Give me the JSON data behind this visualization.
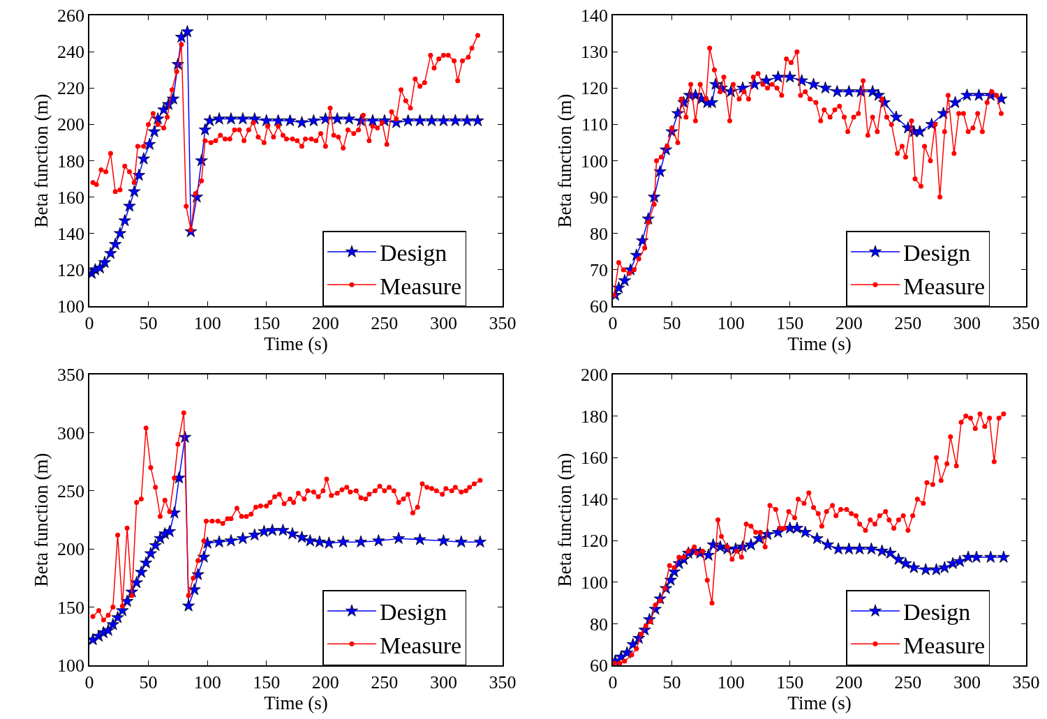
{
  "chart_data": [
    {
      "type": "line",
      "xlabel": "Time (s)",
      "ylabel": "Beta function (m)",
      "xlim": [
        0,
        350
      ],
      "xticks": [
        0,
        50,
        100,
        150,
        200,
        250,
        300,
        350
      ],
      "ylim": [
        100,
        260
      ],
      "yticks": [
        100,
        120,
        140,
        160,
        180,
        200,
        220,
        240,
        260
      ],
      "grid": false,
      "legend": "bottom right",
      "series": [
        {
          "name": "Design",
          "color": "#0000ff",
          "marker": "star",
          "x": [
            2,
            5,
            9,
            13,
            18,
            22,
            26,
            30,
            34,
            38,
            42,
            46,
            51,
            55,
            58,
            63,
            67,
            71,
            75,
            78,
            83,
            86,
            91,
            95,
            98,
            102,
            110,
            120,
            130,
            140,
            150,
            160,
            170,
            180,
            190,
            200,
            210,
            220,
            230,
            240,
            250,
            260,
            270,
            280,
            290,
            300,
            310,
            320,
            329
          ],
          "values": [
            118,
            120,
            121,
            124,
            129,
            134,
            140,
            147,
            155,
            163,
            172,
            181,
            189,
            196,
            203,
            208,
            211,
            214,
            233,
            248,
            251,
            141,
            160,
            180,
            197,
            202,
            203,
            203,
            203,
            203,
            202,
            202,
            202,
            201,
            202,
            203,
            203,
            203,
            202,
            202,
            202,
            201,
            202,
            202,
            202,
            202,
            202,
            202,
            202
          ]
        },
        {
          "name": "Measure",
          "color": "#ff0000",
          "marker": "circle",
          "x": [
            3,
            6,
            10,
            14,
            18,
            22,
            26,
            30,
            34,
            38,
            41,
            46,
            50,
            54,
            58,
            63,
            66,
            70,
            74,
            78,
            82,
            86,
            90,
            95,
            98,
            103,
            107,
            111,
            115,
            119,
            123,
            127,
            131,
            135,
            139,
            143,
            148,
            151,
            156,
            160,
            164,
            167,
            172,
            176,
            180,
            183,
            188,
            192,
            196,
            200,
            204,
            207,
            211,
            215,
            219,
            224,
            228,
            232,
            237,
            240,
            244,
            248,
            252,
            256,
            260,
            264,
            268,
            272,
            276,
            280,
            284,
            289,
            292,
            296,
            300,
            304,
            309,
            312,
            316,
            321,
            324,
            329
          ],
          "values": [
            168,
            167,
            175,
            174,
            184,
            163,
            164,
            177,
            174,
            168,
            188,
            188,
            200,
            206,
            200,
            198,
            204,
            219,
            229,
            244,
            155,
            142,
            162,
            169,
            191,
            190,
            191,
            194,
            192,
            192,
            197,
            197,
            191,
            197,
            201,
            193,
            190,
            199,
            193,
            199,
            194,
            192,
            192,
            191,
            188,
            192,
            192,
            191,
            195,
            188,
            209,
            194,
            193,
            187,
            197,
            195,
            197,
            205,
            191,
            199,
            198,
            201,
            189,
            207,
            203,
            219,
            213,
            209,
            225,
            221,
            223,
            238,
            231,
            236,
            238,
            238,
            235,
            224,
            235,
            237,
            242,
            249
          ]
        }
      ]
    },
    {
      "type": "line",
      "xlabel": "Time (s)",
      "ylabel": "Beta function (m)",
      "xlim": [
        0,
        350
      ],
      "xticks": [
        0,
        50,
        100,
        150,
        200,
        250,
        300,
        350
      ],
      "ylim": [
        60,
        140
      ],
      "yticks": [
        60,
        70,
        80,
        90,
        100,
        110,
        120,
        130,
        140
      ],
      "grid": false,
      "legend": "bottom right",
      "series": [
        {
          "name": "Design",
          "color": "#0000ff",
          "marker": "star",
          "x": [
            2,
            5,
            10,
            15,
            20,
            25,
            30,
            35,
            40,
            45,
            50,
            55,
            60,
            65,
            70,
            75,
            80,
            84,
            87,
            92,
            100,
            110,
            120,
            130,
            140,
            150,
            160,
            170,
            180,
            190,
            200,
            210,
            220,
            225,
            230,
            240,
            250,
            255,
            260,
            270,
            280,
            290,
            300,
            310,
            320,
            329
          ],
          "values": [
            63,
            65,
            67,
            70,
            74,
            78,
            84,
            90,
            97,
            103,
            108,
            113,
            116,
            118,
            118,
            117,
            116,
            116,
            121,
            120,
            119,
            120,
            121,
            122,
            123,
            123,
            122,
            121,
            120,
            119,
            119,
            119,
            119,
            118,
            116,
            112,
            109,
            108,
            108,
            110,
            113,
            116,
            118,
            118,
            118,
            117
          ]
        },
        {
          "name": "Measure",
          "color": "#ff0000",
          "marker": "circle",
          "x": [
            1,
            5,
            9,
            14,
            18,
            22,
            27,
            30,
            35,
            37,
            41,
            46,
            50,
            55,
            58,
            62,
            66,
            70,
            74,
            79,
            82,
            86,
            91,
            94,
            99,
            102,
            107,
            111,
            115,
            119,
            123,
            127,
            131,
            135,
            139,
            143,
            147,
            151,
            156,
            159,
            163,
            167,
            172,
            176,
            179,
            184,
            188,
            192,
            196,
            199,
            204,
            208,
            212,
            216,
            220,
            224,
            228,
            232,
            236,
            241,
            245,
            248,
            253,
            256,
            261,
            264,
            269,
            273,
            277,
            281,
            284,
            289,
            293,
            297,
            301,
            305,
            309,
            313,
            317,
            321,
            325,
            329
          ],
          "values": [
            63,
            72,
            70,
            69,
            70,
            73,
            76,
            83,
            88,
            100,
            101,
            104,
            109,
            105,
            117,
            112,
            121,
            111,
            121,
            117,
            131,
            125,
            119,
            123,
            111,
            121,
            117,
            119,
            117,
            123,
            124,
            121,
            120,
            121,
            120,
            118,
            128,
            127,
            130,
            118,
            119,
            117,
            116,
            111,
            114,
            112,
            114,
            115,
            112,
            108,
            112,
            113,
            122,
            107,
            112,
            108,
            117,
            112,
            110,
            102,
            104,
            101,
            111,
            95,
            93,
            104,
            100,
            110,
            90,
            108,
            118,
            102,
            113,
            113,
            108,
            109,
            113,
            108,
            116,
            119,
            118,
            113
          ]
        }
      ]
    },
    {
      "type": "line",
      "xlabel": "Time (s)",
      "ylabel": "Beta function (m)",
      "xlim": [
        0,
        350
      ],
      "xticks": [
        0,
        50,
        100,
        150,
        200,
        250,
        300,
        350
      ],
      "ylim": [
        100,
        350
      ],
      "yticks": [
        100,
        150,
        200,
        250,
        300,
        350
      ],
      "grid": false,
      "legend": "bottom right",
      "series": [
        {
          "name": "Design",
          "color": "#0000ff",
          "marker": "star",
          "x": [
            3,
            8,
            12,
            16,
            20,
            24,
            28,
            32,
            36,
            40,
            44,
            48,
            52,
            56,
            60,
            64,
            68,
            72,
            76,
            81,
            84,
            89,
            92,
            97,
            100,
            110,
            120,
            130,
            140,
            148,
            155,
            164,
            172,
            180,
            187,
            195,
            203,
            215,
            230,
            245,
            262,
            280,
            300,
            315,
            331
          ],
          "values": [
            122,
            125,
            128,
            130,
            135,
            141,
            147,
            155,
            163,
            171,
            180,
            188,
            196,
            203,
            209,
            213,
            215,
            231,
            261,
            296,
            151,
            165,
            178,
            193,
            205,
            206,
            207,
            209,
            212,
            215,
            216,
            216,
            213,
            210,
            207,
            206,
            205,
            206,
            206,
            207,
            209,
            208,
            207,
            206,
            206
          ]
        },
        {
          "name": "Measure",
          "color": "#ff0000",
          "marker": "circle",
          "x": [
            3,
            8,
            12,
            16,
            20,
            24,
            28,
            32,
            36,
            40,
            44,
            48,
            52,
            56,
            60,
            64,
            68,
            72,
            75,
            80,
            84,
            88,
            92,
            97,
            99,
            104,
            109,
            113,
            117,
            120,
            125,
            129,
            133,
            137,
            141,
            145,
            150,
            153,
            157,
            161,
            165,
            170,
            173,
            177,
            182,
            185,
            190,
            194,
            198,
            201,
            205,
            210,
            214,
            218,
            221,
            226,
            230,
            234,
            237,
            242,
            246,
            250,
            254,
            258,
            262,
            266,
            270,
            274,
            278,
            282,
            286,
            290,
            294,
            299,
            302,
            307,
            310,
            315,
            319,
            322,
            326,
            331
          ],
          "values": [
            142,
            147,
            139,
            143,
            150,
            212,
            151,
            218,
            160,
            240,
            243,
            304,
            270,
            253,
            228,
            242,
            232,
            261,
            290,
            317,
            160,
            175,
            190,
            207,
            224,
            224,
            224,
            222,
            226,
            226,
            235,
            228,
            228,
            230,
            236,
            237,
            237,
            240,
            245,
            247,
            239,
            243,
            240,
            248,
            243,
            250,
            249,
            245,
            250,
            260,
            246,
            248,
            251,
            253,
            249,
            250,
            244,
            243,
            247,
            250,
            254,
            250,
            253,
            250,
            240,
            243,
            247,
            231,
            236,
            256,
            253,
            252,
            250,
            247,
            252,
            250,
            253,
            249,
            250,
            253,
            256,
            259
          ]
        }
      ]
    },
    {
      "type": "line",
      "xlabel": "Time (s)",
      "ylabel": "Beta function (m)",
      "xlim": [
        0,
        350
      ],
      "xticks": [
        0,
        50,
        100,
        150,
        200,
        250,
        300,
        350
      ],
      "ylim": [
        60,
        200
      ],
      "yticks": [
        60,
        80,
        100,
        120,
        140,
        160,
        180,
        200
      ],
      "grid": false,
      "legend": "bottom right",
      "series": [
        {
          "name": "Design",
          "color": "#0000ff",
          "marker": "star",
          "x": [
            2,
            7,
            12,
            17,
            22,
            27,
            31,
            36,
            40,
            45,
            49,
            52,
            56,
            60,
            64,
            69,
            74,
            81,
            85,
            91,
            97,
            104,
            110,
            117,
            124,
            131,
            140,
            150,
            156,
            163,
            173,
            182,
            191,
            200,
            209,
            219,
            228,
            235,
            242,
            248,
            255,
            265,
            274,
            281,
            288,
            294,
            301,
            308,
            320,
            331
          ],
          "values": [
            62,
            64,
            66,
            70,
            73,
            77,
            82,
            87,
            92,
            97,
            101,
            105,
            109,
            111,
            114,
            115,
            114,
            113,
            118,
            117,
            116,
            116,
            117,
            118,
            121,
            123,
            124,
            126,
            126,
            124,
            121,
            118,
            116,
            116,
            116,
            116,
            115,
            114,
            111,
            109,
            107,
            106,
            106,
            107,
            109,
            110,
            112,
            112,
            112,
            112
          ]
        },
        {
          "name": "Measure",
          "color": "#ff0000",
          "marker": "circle",
          "x": [
            1,
            6,
            10,
            16,
            20,
            24,
            28,
            32,
            36,
            40,
            44,
            48,
            52,
            56,
            60,
            64,
            69,
            71,
            76,
            80,
            84,
            89,
            92,
            97,
            101,
            105,
            109,
            113,
            117,
            121,
            125,
            129,
            133,
            138,
            142,
            145,
            149,
            154,
            157,
            162,
            166,
            170,
            174,
            177,
            181,
            186,
            189,
            193,
            198,
            202,
            206,
            209,
            214,
            218,
            222,
            226,
            231,
            234,
            238,
            242,
            246,
            250,
            254,
            258,
            263,
            266,
            271,
            274,
            278,
            283,
            286,
            291,
            295,
            299,
            303,
            307,
            311,
            315,
            319,
            323,
            327,
            331
          ],
          "values": [
            61,
            61,
            62,
            65,
            68,
            75,
            79,
            81,
            89,
            91,
            97,
            108,
            107,
            112,
            112,
            115,
            117,
            114,
            115,
            101,
            90,
            130,
            122,
            117,
            111,
            115,
            112,
            128,
            127,
            124,
            124,
            117,
            137,
            135,
            126,
            126,
            134,
            131,
            140,
            138,
            143,
            136,
            133,
            127,
            134,
            137,
            132,
            135,
            135,
            133,
            132,
            128,
            125,
            130,
            128,
            132,
            134,
            130,
            126,
            130,
            132,
            125,
            132,
            140,
            138,
            148,
            147,
            160,
            149,
            157,
            170,
            156,
            177,
            180,
            179,
            174,
            181,
            175,
            179,
            158,
            179,
            181
          ]
        }
      ]
    }
  ]
}
